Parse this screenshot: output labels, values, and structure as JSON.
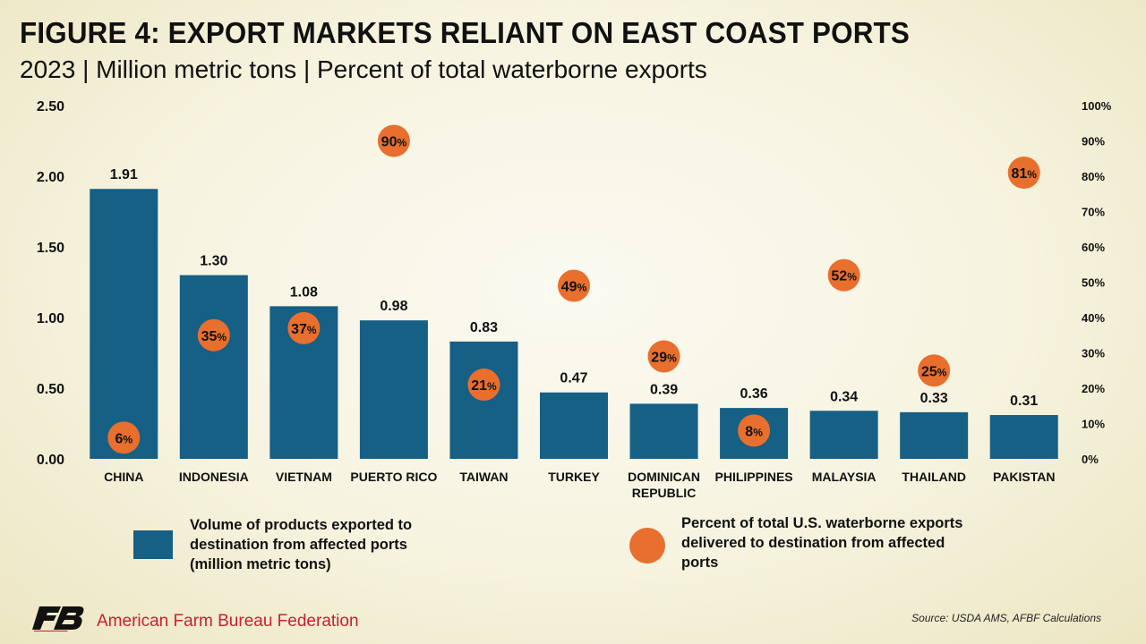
{
  "chart_data": {
    "type": "bar",
    "title": "FIGURE 4: EXPORT MARKETS RELIANT ON EAST COAST PORTS",
    "subtitle": "2023 | Million metric tons | Percent of total waterborne exports",
    "categories": [
      "CHINA",
      "INDONESIA",
      "VIETNAM",
      "PUERTO RICO",
      "TAIWAN",
      "TURKEY",
      "DOMINICAN REPUBLIC",
      "PHILIPPINES",
      "MALAYSIA",
      "THAILAND",
      "PAKISTAN"
    ],
    "series": [
      {
        "name": "Volume of products exported to destination from affected ports (million metric tons)",
        "type": "bar",
        "axis": "left",
        "color": "#165f85",
        "values": [
          1.91,
          1.3,
          1.08,
          0.98,
          0.83,
          0.47,
          0.39,
          0.36,
          0.34,
          0.33,
          0.31
        ],
        "labels": [
          "1.91",
          "1.30",
          "1.08",
          "0.98",
          "0.83",
          "0.47",
          "0.39",
          "0.36",
          "0.34",
          "0.33",
          "0.31"
        ]
      },
      {
        "name": "Percent of total U.S. waterborne exports delivered to destination from affected ports",
        "type": "scatter",
        "axis": "right",
        "color": "#e86f2d",
        "values": [
          6,
          35,
          37,
          90,
          21,
          49,
          29,
          8,
          52,
          25,
          81
        ],
        "labels": [
          "6",
          "35",
          "37",
          "90",
          "21",
          "49",
          "29",
          "8",
          "52",
          "25",
          "81"
        ]
      }
    ],
    "ylim": [
      0,
      2.5
    ],
    "yticks": [
      "0.00",
      "0.50",
      "1.00",
      "1.50",
      "2.00",
      "2.50"
    ],
    "y2lim": [
      0,
      100
    ],
    "y2ticks": [
      "0%",
      "10%",
      "20%",
      "30%",
      "40%",
      "50%",
      "60%",
      "70%",
      "80%",
      "90%",
      "100%"
    ],
    "percent_suffix": "%",
    "grid": false,
    "legend_position": "bottom"
  },
  "legend": {
    "bar_lines": [
      "Volume of products exported to",
      "destination from affected ports",
      "(million metric tons)"
    ],
    "dot_lines": [
      "Percent of total U.S. waterborne exports",
      "delivered to destination from affected",
      "ports"
    ]
  },
  "footer": {
    "organization": "American Farm Bureau Federation",
    "source": "Source: USDA AMS, AFBF Calculations"
  }
}
